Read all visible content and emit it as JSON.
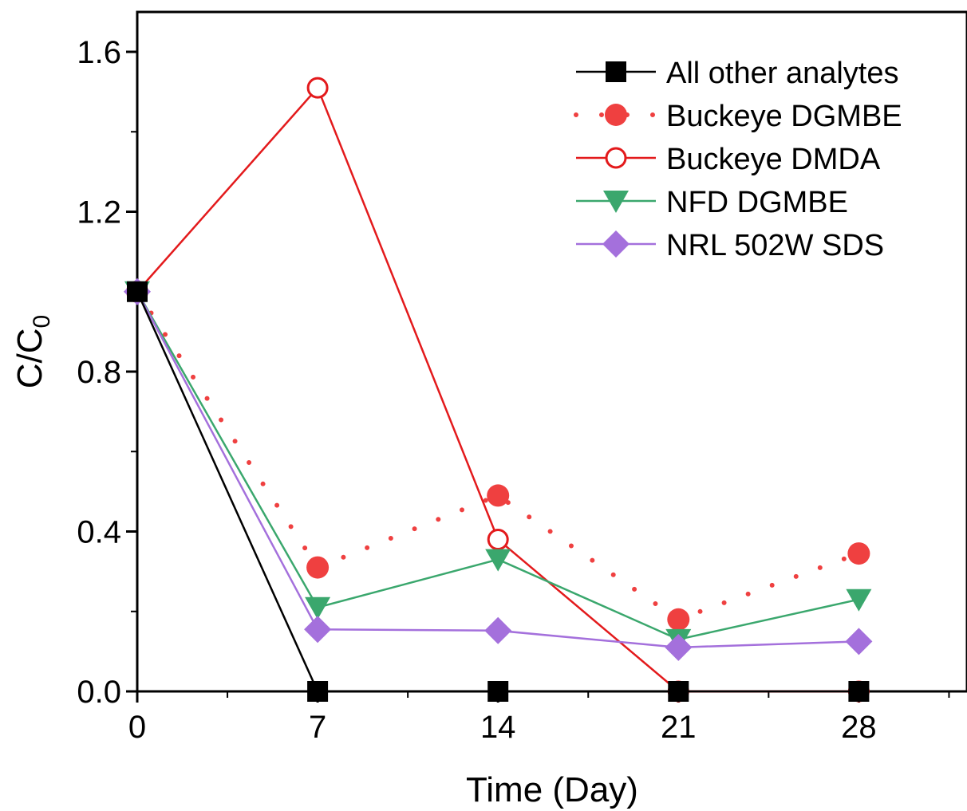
{
  "chart_data": {
    "type": "line",
    "xlabel": "Time (Day)",
    "ylabel": {
      "main": "C/C",
      "sub": "0"
    },
    "xlim": [
      0,
      32
    ],
    "ylim": [
      0,
      1.7
    ],
    "xticks": [
      0,
      7,
      14,
      21,
      28
    ],
    "xtick_labels": [
      "0",
      "7",
      "14",
      "21",
      "28"
    ],
    "yticks": [
      0,
      0.4,
      0.8,
      1.2,
      1.6
    ],
    "ytick_labels": [
      "0.0",
      "0.4",
      "0.8",
      "1.2",
      "1.6"
    ],
    "x": [
      0,
      7,
      14,
      21,
      28
    ],
    "grid": false,
    "legend_position": "top-right",
    "series": [
      {
        "name": "All other analytes",
        "values": [
          1.0,
          0.0,
          0.0,
          0.0,
          0.0
        ],
        "color": "#000000",
        "marker": "square-filled",
        "line": "solid"
      },
      {
        "name": "Buckeye DGMBE",
        "values": [
          1.0,
          0.31,
          0.49,
          0.18,
          0.345
        ],
        "color": "#ef4040",
        "marker": "circle-filled",
        "line": "dotted"
      },
      {
        "name": "Buckeye DMDA",
        "values": [
          1.0,
          1.51,
          0.38,
          0.0,
          0.0
        ],
        "color": "#e31a1c",
        "marker": "circle-open",
        "line": "solid"
      },
      {
        "name": "NFD DGMBE",
        "values": [
          1.0,
          0.21,
          0.33,
          0.13,
          0.23
        ],
        "color": "#3aa76d",
        "marker": "triangle-down-filled",
        "line": "solid"
      },
      {
        "name": "NRL 502W SDS",
        "values": [
          1.0,
          0.155,
          0.152,
          0.11,
          0.125
        ],
        "color": "#a470dc",
        "marker": "diamond-filled",
        "line": "solid"
      }
    ]
  }
}
